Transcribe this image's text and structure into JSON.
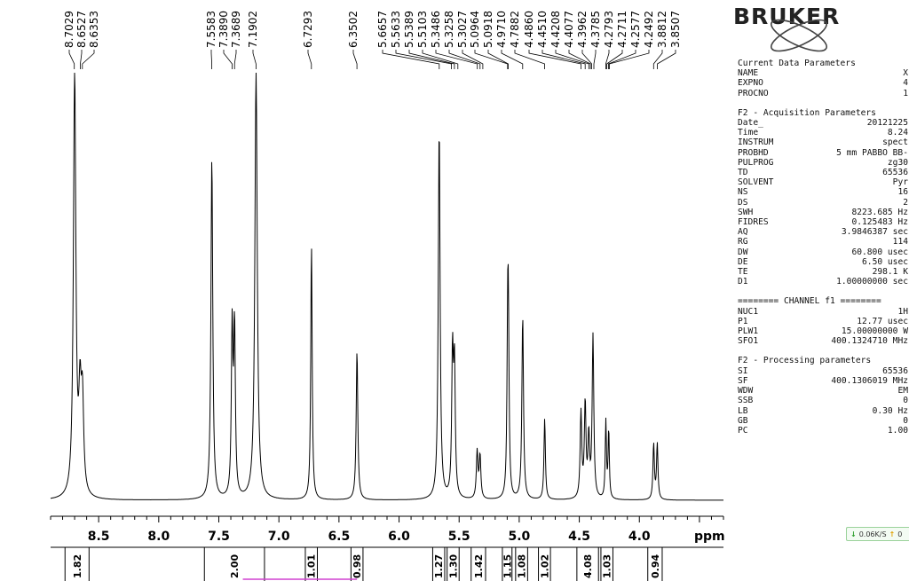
{
  "logo": {
    "text": "BRUKER"
  },
  "chart_data": {
    "type": "line",
    "title": "",
    "xlabel": "ppm",
    "ylabel": "",
    "xlim": [
      8.9,
      3.3
    ],
    "x_reversed": true,
    "grid": false,
    "x_ticks": [
      {
        "value": 8.5,
        "label": "8.5"
      },
      {
        "value": 8.0,
        "label": "8.0"
      },
      {
        "value": 7.5,
        "label": "7.5"
      },
      {
        "value": 7.0,
        "label": "7.0"
      },
      {
        "value": 6.5,
        "label": "6.5"
      },
      {
        "value": 6.0,
        "label": "6.0"
      },
      {
        "value": 5.5,
        "label": "5.5"
      },
      {
        "value": 5.0,
        "label": "5.0"
      },
      {
        "value": 4.5,
        "label": "4.5"
      },
      {
        "value": 4.0,
        "label": "4.0"
      }
    ],
    "peak_labels": [
      {
        "ppm": 8.7029,
        "label": "8.7029"
      },
      {
        "ppm": 8.6527,
        "label": "8.6527"
      },
      {
        "ppm": 8.6353,
        "label": "8.6353"
      },
      {
        "ppm": 7.5583,
        "label": "7.5583"
      },
      {
        "ppm": 7.389,
        "label": "7.3890"
      },
      {
        "ppm": 7.3689,
        "label": "7.3689"
      },
      {
        "ppm": 7.1902,
        "label": "7.1902"
      },
      {
        "ppm": 6.7293,
        "label": "6.7293"
      },
      {
        "ppm": 6.3502,
        "label": "6.3502"
      },
      {
        "ppm": 5.6657,
        "label": "5.6657"
      },
      {
        "ppm": 5.5633,
        "label": "5.5633"
      },
      {
        "ppm": 5.5389,
        "label": "5.5389"
      },
      {
        "ppm": 5.5103,
        "label": "5.5103"
      },
      {
        "ppm": 5.3486,
        "label": "5.3486"
      },
      {
        "ppm": 5.3258,
        "label": "5.3258"
      },
      {
        "ppm": 5.3027,
        "label": "5.3027"
      },
      {
        "ppm": 5.0964,
        "label": "5.0964"
      },
      {
        "ppm": 5.0918,
        "label": "5.0918"
      },
      {
        "ppm": 4.971,
        "label": "4.9710"
      },
      {
        "ppm": 4.7882,
        "label": "4.7882"
      },
      {
        "ppm": 4.486,
        "label": "4.4860"
      },
      {
        "ppm": 4.451,
        "label": "4.4510"
      },
      {
        "ppm": 4.4208,
        "label": "4.4208"
      },
      {
        "ppm": 4.4077,
        "label": "4.4077"
      },
      {
        "ppm": 4.3962,
        "label": "4.3962"
      },
      {
        "ppm": 4.3785,
        "label": "4.3785"
      },
      {
        "ppm": 4.2793,
        "label": "4.2793"
      },
      {
        "ppm": 4.2711,
        "label": "4.2711"
      },
      {
        "ppm": 4.2577,
        "label": "4.2577"
      },
      {
        "ppm": 4.2492,
        "label": "4.2492"
      },
      {
        "ppm": 3.8812,
        "label": "3.8812"
      },
      {
        "ppm": 3.8507,
        "label": "3.8507"
      }
    ],
    "peaks": [
      {
        "ppm": 8.7,
        "height": 1.0,
        "width": 0.012
      },
      {
        "ppm": 8.655,
        "height": 0.21,
        "width": 0.012
      },
      {
        "ppm": 8.635,
        "height": 0.21,
        "width": 0.012
      },
      {
        "ppm": 7.558,
        "height": 0.8,
        "width": 0.009
      },
      {
        "ppm": 7.389,
        "height": 0.39,
        "width": 0.008
      },
      {
        "ppm": 7.369,
        "height": 0.39,
        "width": 0.008
      },
      {
        "ppm": 7.19,
        "height": 1.0,
        "width": 0.012
      },
      {
        "ppm": 6.729,
        "height": 0.6,
        "width": 0.007
      },
      {
        "ppm": 6.35,
        "height": 0.35,
        "width": 0.008
      },
      {
        "ppm": 5.666,
        "height": 0.87,
        "width": 0.009
      },
      {
        "ppm": 5.555,
        "height": 0.33,
        "width": 0.008
      },
      {
        "ppm": 5.539,
        "height": 0.3,
        "width": 0.008
      },
      {
        "ppm": 5.35,
        "height": 0.11,
        "width": 0.008
      },
      {
        "ppm": 5.326,
        "height": 0.1,
        "width": 0.008
      },
      {
        "ppm": 5.096,
        "height": 0.33,
        "width": 0.007
      },
      {
        "ppm": 5.09,
        "height": 0.33,
        "width": 0.007
      },
      {
        "ppm": 4.971,
        "height": 0.43,
        "width": 0.008
      },
      {
        "ppm": 4.788,
        "height": 0.19,
        "width": 0.007
      },
      {
        "ppm": 4.486,
        "height": 0.2,
        "width": 0.008
      },
      {
        "ppm": 4.451,
        "height": 0.22,
        "width": 0.008
      },
      {
        "ppm": 4.421,
        "height": 0.14,
        "width": 0.008
      },
      {
        "ppm": 4.386,
        "height": 0.38,
        "width": 0.008
      },
      {
        "ppm": 4.279,
        "height": 0.18,
        "width": 0.006
      },
      {
        "ppm": 4.255,
        "height": 0.16,
        "width": 0.006
      },
      {
        "ppm": 3.881,
        "height": 0.13,
        "width": 0.007
      },
      {
        "ppm": 3.851,
        "height": 0.13,
        "width": 0.007
      }
    ],
    "integrals": [
      {
        "from": 8.78,
        "to": 8.58,
        "value": "1.82"
      },
      {
        "from": 7.62,
        "to": 7.12,
        "value": "2.00"
      },
      {
        "from": 6.78,
        "to": 6.68,
        "value": "1.01"
      },
      {
        "from": 6.4,
        "to": 6.3,
        "value": "0.98"
      },
      {
        "from": 5.72,
        "to": 5.62,
        "value": "1.27"
      },
      {
        "from": 5.6,
        "to": 5.5,
        "value": "1.30"
      },
      {
        "from": 5.4,
        "to": 5.28,
        "value": "1.42"
      },
      {
        "from": 5.14,
        "to": 5.06,
        "value": "1.15"
      },
      {
        "from": 5.03,
        "to": 4.93,
        "value": "1.08"
      },
      {
        "from": 4.84,
        "to": 4.74,
        "value": "1.02"
      },
      {
        "from": 4.52,
        "to": 4.34,
        "value": "4.08"
      },
      {
        "from": 4.32,
        "to": 4.22,
        "value": "1.03"
      },
      {
        "from": 3.93,
        "to": 3.81,
        "value": "0.94"
      }
    ]
  },
  "params": {
    "title1": "Current Data Parameters",
    "rows1": [
      {
        "key": "NAME",
        "value": "X"
      },
      {
        "key": "EXPNO",
        "value": "4"
      },
      {
        "key": "PROCNO",
        "value": "1"
      }
    ],
    "title2": "F2 - Acquisition Parameters",
    "rows2": [
      {
        "key": "Date_",
        "value": "20121225"
      },
      {
        "key": "Time",
        "value": "8.24"
      },
      {
        "key": "INSTRUM",
        "value": "spect"
      },
      {
        "key": "PROBHD",
        "value": "5 mm PABBO BB-"
      },
      {
        "key": "PULPROG",
        "value": "zg30"
      },
      {
        "key": "TD",
        "value": "65536"
      },
      {
        "key": "SOLVENT",
        "value": "Pyr"
      },
      {
        "key": "NS",
        "value": "16"
      },
      {
        "key": "DS",
        "value": "2"
      },
      {
        "key": "SWH",
        "value": "8223.685 Hz"
      },
      {
        "key": "FIDRES",
        "value": "0.125483 Hz"
      },
      {
        "key": "AQ",
        "value": "3.9846387 sec"
      },
      {
        "key": "RG",
        "value": "114"
      },
      {
        "key": "DW",
        "value": "60.800 usec"
      },
      {
        "key": "DE",
        "value": "6.50 usec"
      },
      {
        "key": "TE",
        "value": "298.1 K"
      },
      {
        "key": "D1",
        "value": "1.00000000 sec"
      }
    ],
    "title3": "======== CHANNEL f1 ========",
    "rows3": [
      {
        "key": "NUC1",
        "value": "1H"
      },
      {
        "key": "P1",
        "value": "12.77 usec"
      },
      {
        "key": "PLW1",
        "value": "15.00000000 W"
      },
      {
        "key": "SFO1",
        "value": "400.1324710 MHz"
      }
    ],
    "title4": "F2 - Processing parameters",
    "rows4": [
      {
        "key": "SI",
        "value": "65536"
      },
      {
        "key": "SF",
        "value": "400.1306019 MHz"
      },
      {
        "key": "WDW",
        "value": "EM"
      },
      {
        "key": "SSB",
        "value": "0"
      },
      {
        "key": "LB",
        "value": "0.30 Hz"
      },
      {
        "key": "GB",
        "value": "0"
      },
      {
        "key": "PC",
        "value": "1.00"
      }
    ]
  },
  "speed_widget": {
    "down": "0.06K/S",
    "up": "0"
  },
  "colors": {
    "spectrum": "#000000",
    "axis": "#000000",
    "integral_divider": "#d040d0"
  }
}
